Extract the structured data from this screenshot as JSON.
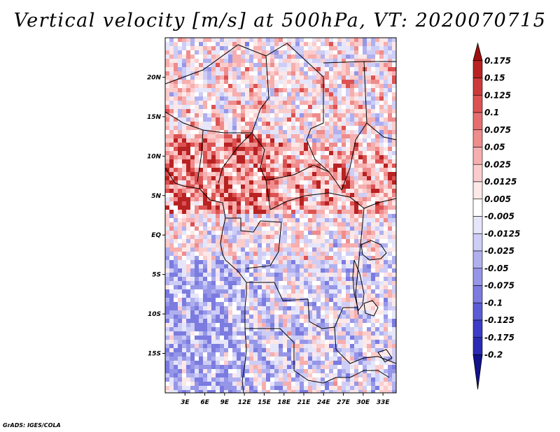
{
  "title": "Vertical velocity [m/s] at 500hPa, VT: 2020070715",
  "credit": "GrADS: IGES/COLA",
  "map": {
    "type": "filled-contour-map",
    "variable": "Vertical velocity",
    "units": "m/s",
    "level": "500hPa",
    "valid_time": "2020070715",
    "lon_range": [
      0,
      35
    ],
    "lat_range": [
      -20,
      25
    ],
    "lon_ticks": [
      "3E",
      "6E",
      "9E",
      "12E",
      "15E",
      "18E",
      "21E",
      "24E",
      "27E",
      "30E",
      "33E"
    ],
    "lat_ticks": [
      "20N",
      "15N",
      "10N",
      "5N",
      "EQ",
      "5S",
      "10S",
      "15S"
    ]
  },
  "colorbar": {
    "labels": [
      "0.175",
      "0.15",
      "0.125",
      "0.1",
      "0.075",
      "0.05",
      "0.025",
      "0.0125",
      "0.005",
      "-0.005",
      "-0.0125",
      "-0.025",
      "-0.05",
      "-0.075",
      "-0.1",
      "-0.125",
      "-0.175",
      "-0.2"
    ],
    "colors": [
      "#a01010",
      "#b82222",
      "#cc3a3a",
      "#dc5252",
      "#e66e6e",
      "#ef8c8c",
      "#f6aeae",
      "#fbcccc",
      "#fde8e8",
      "#ffffff",
      "#e6e6fb",
      "#cdcdf6",
      "#b0b0ef",
      "#9696e8",
      "#7b7be0",
      "#5c5cd6",
      "#3c3cc6",
      "#2a2ab4",
      "#12128a"
    ]
  }
}
